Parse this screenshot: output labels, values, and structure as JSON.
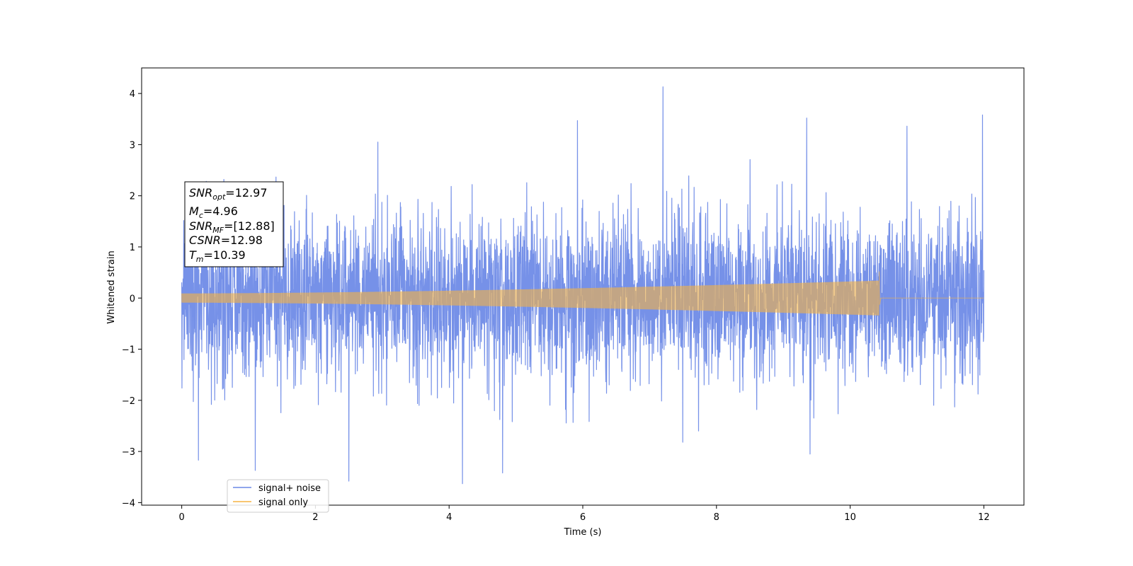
{
  "chart_data": {
    "type": "line",
    "title": "",
    "xlabel": "Time (s)",
    "ylabel": "Whitened strain",
    "xlim": [
      -0.6,
      12.6
    ],
    "ylim": [
      -4.05,
      4.5
    ],
    "x_ticks": [
      0,
      2,
      4,
      6,
      8,
      10,
      12
    ],
    "y_ticks": [
      -4,
      -3,
      -2,
      -1,
      0,
      1,
      2,
      3,
      4
    ],
    "grid": false,
    "legend_position": "lower-left",
    "series": [
      {
        "name": "signal+ noise",
        "color": "#6a88e6",
        "x_range": [
          0,
          12
        ],
        "noise_std": 0.78,
        "notable_peaks": [
          {
            "x": 7.2,
            "y": 4.13
          },
          {
            "x": 11.98,
            "y": 3.58
          },
          {
            "x": 5.92,
            "y": 3.47
          },
          {
            "x": 10.85,
            "y": 3.36
          },
          {
            "x": 9.35,
            "y": 3.52
          },
          {
            "x": 4.2,
            "y": -3.63
          },
          {
            "x": 2.5,
            "y": -3.58
          },
          {
            "x": 0.25,
            "y": -3.17
          },
          {
            "x": 1.1,
            "y": -3.37
          },
          {
            "x": 4.8,
            "y": -3.42
          },
          {
            "x": 9.4,
            "y": -3.05
          }
        ]
      },
      {
        "name": "signal only",
        "color": "#f5b342",
        "x_range": [
          0,
          12
        ],
        "merger_time": 10.43,
        "amplitude_start": 0.09,
        "amplitude_end": 0.34,
        "peak_amplitude": 0.52
      }
    ],
    "annotation": {
      "lines": [
        {
          "symbol": "SNR",
          "sub": "opt",
          "value": "=12.97"
        },
        {
          "symbol": "M",
          "sub": "c",
          "value": "=4.96"
        },
        {
          "symbol": "SNR",
          "sub": "MF",
          "value": "=[12.88]"
        },
        {
          "symbol": "CSNR",
          "sub": "",
          "value": "=12.98"
        },
        {
          "symbol": "T",
          "sub": "m",
          "value": "=10.39"
        }
      ]
    }
  }
}
